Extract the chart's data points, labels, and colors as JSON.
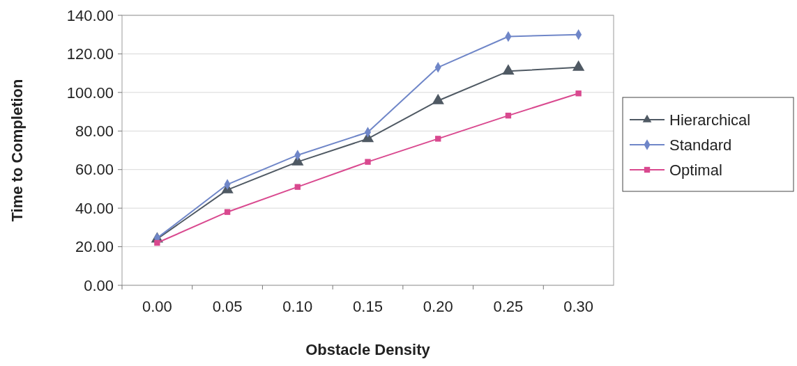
{
  "chart_data": {
    "type": "line",
    "xlabel": "Obstacle Density",
    "ylabel": "Time to Completion",
    "categories": [
      "0.00",
      "0.05",
      "0.10",
      "0.15",
      "0.20",
      "0.25",
      "0.30"
    ],
    "series": [
      {
        "name": "Hierarchical",
        "color": "#4f5963",
        "marker": "triangle",
        "values": [
          24,
          49.5,
          64,
          76,
          95.7,
          111,
          113
        ]
      },
      {
        "name": "Standard",
        "color": "#6f86c8",
        "marker": "diamond",
        "values": [
          24.5,
          52.3,
          67.5,
          79.4,
          113,
          129,
          130
        ]
      },
      {
        "name": "Optimal",
        "color": "#d9498f",
        "marker": "square",
        "values": [
          22,
          38,
          51,
          64,
          76,
          88,
          99.5
        ]
      }
    ],
    "ylim": [
      0,
      140
    ],
    "yticks": [
      {
        "value": 0,
        "label": "0.00"
      },
      {
        "value": 20,
        "label": "20.00"
      },
      {
        "value": 40,
        "label": "40.00"
      },
      {
        "value": 60,
        "label": "60.00"
      },
      {
        "value": 80,
        "label": "80.00"
      },
      {
        "value": 100,
        "label": "100.00"
      },
      {
        "value": 120,
        "label": "120.00"
      },
      {
        "value": 140,
        "label": "140.00"
      }
    ],
    "grid": "y",
    "legend": "right",
    "line_style": "solid"
  }
}
